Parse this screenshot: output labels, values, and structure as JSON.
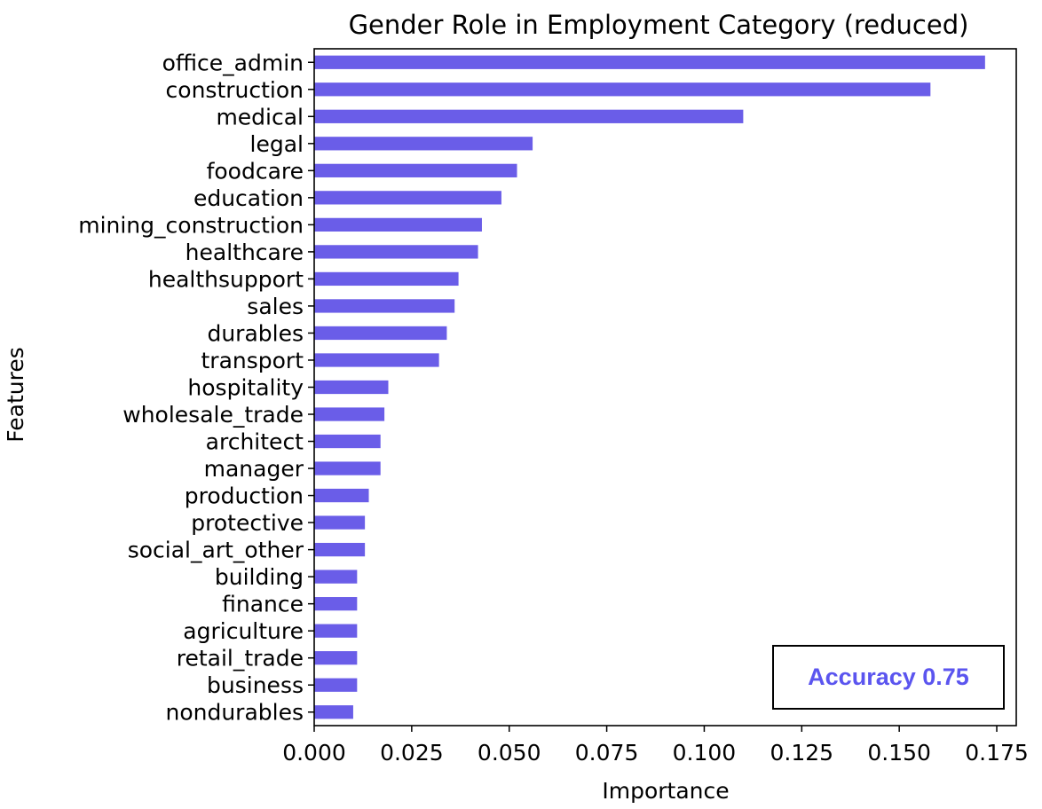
{
  "chart_data": {
    "type": "bar",
    "orientation": "horizontal",
    "title": "Gender Role in Employment Category (reduced)",
    "xlabel": "Importance",
    "ylabel": "Features",
    "xlim": [
      0.0,
      0.18
    ],
    "xticks": [
      "0.000",
      "0.025",
      "0.050",
      "0.075",
      "0.100",
      "0.125",
      "0.150",
      "0.175"
    ],
    "categories": [
      "office_admin",
      "construction",
      "medical",
      "legal",
      "foodcare",
      "education",
      "mining_construction",
      "healthcare",
      "healthsupport",
      "sales",
      "durables",
      "transport",
      "hospitality",
      "wholesale_trade",
      "architect",
      "manager",
      "production",
      "protective",
      "social_art_other",
      "building",
      "finance",
      "agriculture",
      "retail_trade",
      "business",
      "nondurables"
    ],
    "values": [
      0.172,
      0.158,
      0.11,
      0.056,
      0.052,
      0.048,
      0.043,
      0.042,
      0.037,
      0.036,
      0.034,
      0.032,
      0.019,
      0.018,
      0.017,
      0.017,
      0.014,
      0.013,
      0.013,
      0.011,
      0.011,
      0.011,
      0.011,
      0.011,
      0.01
    ],
    "bar_color": "#6a5de8",
    "grid": false,
    "annotation": {
      "text": "Accuracy 0.75",
      "color": "#5b55ef",
      "placement": "bottom-right"
    }
  }
}
